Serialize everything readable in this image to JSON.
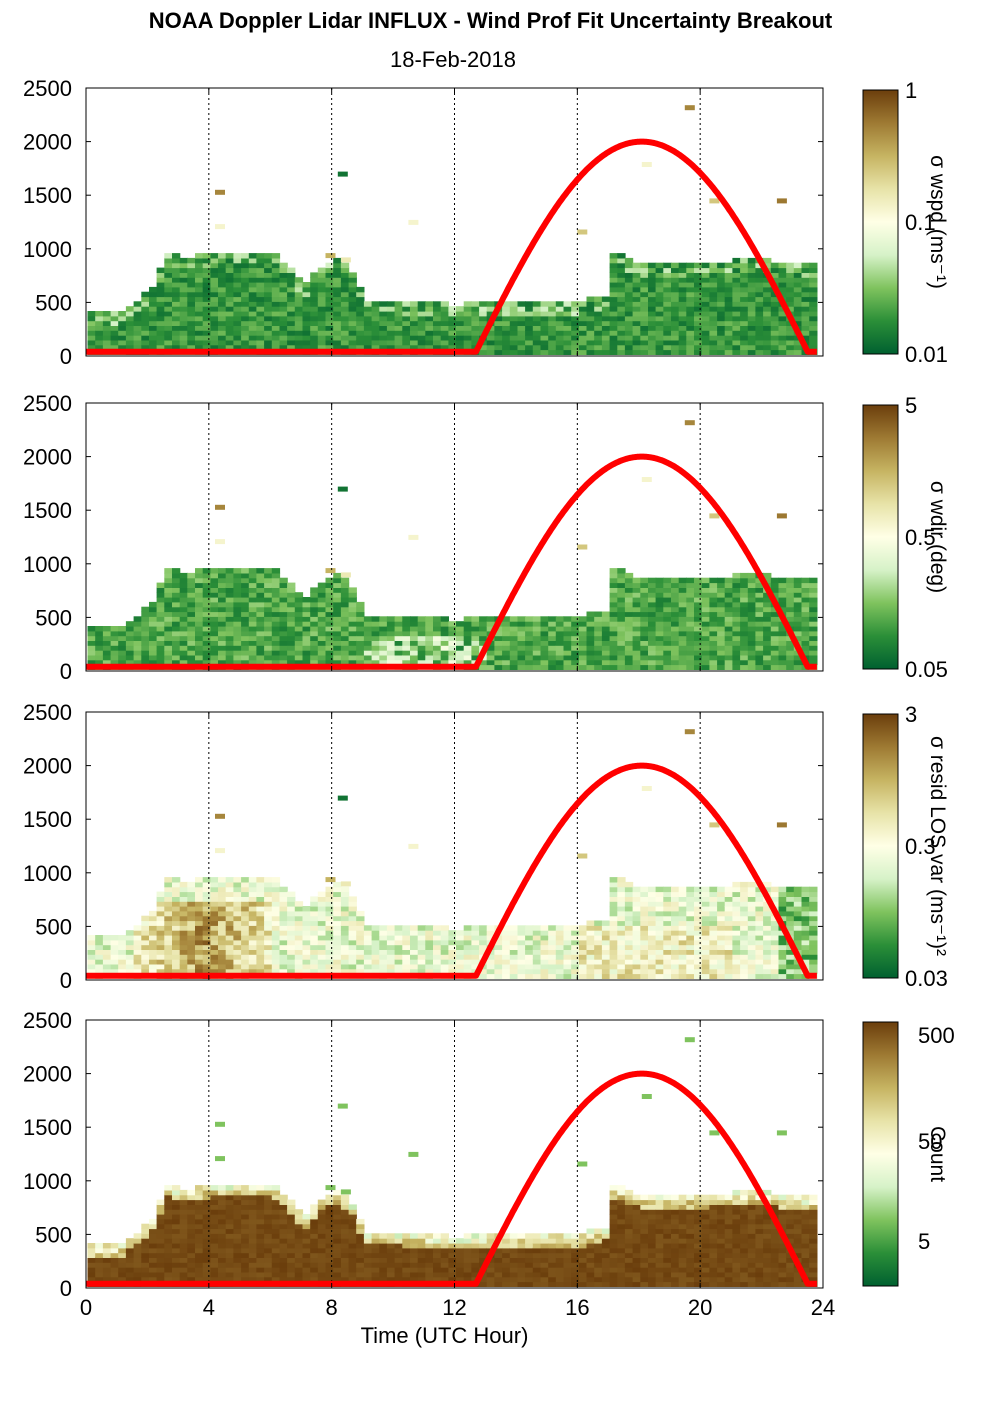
{
  "title": "NOAA Doppler Lidar INFLUX - Wind Prof Fit Uncertainty Breakout",
  "subtitle": "18-Feb-2018",
  "colors": {
    "sun_curve": "#ff0000",
    "cmap": [
      "#006030",
      "#2b8f38",
      "#7fc35e",
      "#d6f2c8",
      "#ffffe6",
      "#e7e3a8",
      "#c6b462",
      "#9e7a33",
      "#6b3e0c"
    ]
  },
  "chart_data": [
    {
      "type": "heatmap",
      "panel": "wspd",
      "xlabel": "",
      "ylabel": "",
      "xlim": [
        0,
        24
      ],
      "ylim": [
        0,
        2500
      ],
      "xticks": [
        "0",
        "4",
        "8",
        "12",
        "16",
        "20",
        "24"
      ],
      "yticks": [
        "0",
        "500",
        "1000",
        "1500",
        "2000",
        "2500"
      ],
      "vertical_gridlines_at": [
        4,
        8,
        12,
        16,
        20,
        24
      ],
      "colorbar": {
        "label": "σ wspd (ms⁻¹)",
        "tick_labels": [
          "0.01",
          "0.1",
          "1"
        ],
        "scale": "log"
      },
      "data_top_height_m": [
        [
          0,
          380
        ],
        [
          1,
          380
        ],
        [
          1.5,
          500
        ],
        [
          2,
          600
        ],
        [
          2.5,
          950
        ],
        [
          3,
          900
        ],
        [
          4,
          950
        ],
        [
          5,
          950
        ],
        [
          6,
          950
        ],
        [
          6.5,
          800
        ],
        [
          7,
          650
        ],
        [
          7.5,
          800
        ],
        [
          8,
          900
        ],
        [
          8.5,
          800
        ],
        [
          9,
          500
        ],
        [
          10,
          500
        ],
        [
          11,
          480
        ],
        [
          12,
          460
        ],
        [
          13,
          480
        ],
        [
          14,
          480
        ],
        [
          15,
          490
        ],
        [
          16,
          490
        ],
        [
          16.8,
          550
        ],
        [
          17,
          950
        ],
        [
          18,
          850
        ],
        [
          19,
          850
        ],
        [
          20,
          850
        ],
        [
          21,
          870
        ],
        [
          22,
          880
        ],
        [
          23,
          830
        ],
        [
          23.8,
          830
        ]
      ],
      "sun_elevation_curve": {
        "color": "red",
        "start_hour": 12.7,
        "peak_hour": 18,
        "end_hour": 23.5,
        "peak_height_m": 2000
      }
    },
    {
      "type": "heatmap",
      "panel": "wdir",
      "xlabel": "",
      "ylabel": "",
      "xlim": [
        0,
        24
      ],
      "ylim": [
        0,
        2500
      ],
      "xticks": [
        "0",
        "4",
        "8",
        "12",
        "16",
        "20",
        "24"
      ],
      "yticks": [
        "0",
        "500",
        "1000",
        "1500",
        "2000",
        "2500"
      ],
      "colorbar": {
        "label": "σ wdir (deg)",
        "tick_labels": [
          "0.05",
          "0.5",
          "5"
        ],
        "scale": "log"
      },
      "sun_elevation_curve": {
        "color": "red",
        "start_hour": 12.7,
        "peak_hour": 18,
        "end_hour": 23.5,
        "peak_height_m": 2000
      }
    },
    {
      "type": "heatmap",
      "panel": "resid",
      "xlabel": "",
      "ylabel": "",
      "xlim": [
        0,
        24
      ],
      "ylim": [
        0,
        2500
      ],
      "xticks": [
        "0",
        "4",
        "8",
        "12",
        "16",
        "20",
        "24"
      ],
      "yticks": [
        "0",
        "500",
        "1000",
        "1500",
        "2000",
        "2500"
      ],
      "colorbar": {
        "label": "σ resid LOS var (ms⁻¹)²",
        "tick_labels": [
          "0.03",
          "0.3",
          "3"
        ],
        "scale": "log"
      },
      "sun_elevation_curve": {
        "color": "red",
        "start_hour": 12.7,
        "peak_hour": 18,
        "end_hour": 23.5,
        "peak_height_m": 2000
      }
    },
    {
      "type": "heatmap",
      "panel": "count",
      "xlabel": "Time (UTC Hour)",
      "ylabel": "",
      "xlim": [
        0,
        24
      ],
      "ylim": [
        0,
        2500
      ],
      "xticks": [
        "0",
        "4",
        "8",
        "12",
        "16",
        "20",
        "24"
      ],
      "yticks": [
        "0",
        "500",
        "1000",
        "1500",
        "2000",
        "2500"
      ],
      "colorbar": {
        "label": "Count",
        "tick_labels": [
          "5",
          "50",
          "500"
        ],
        "scale": "log"
      },
      "sun_elevation_curve": {
        "color": "red",
        "start_hour": 12.7,
        "peak_hour": 18,
        "end_hour": 23.5,
        "peak_height_m": 2000
      }
    }
  ]
}
